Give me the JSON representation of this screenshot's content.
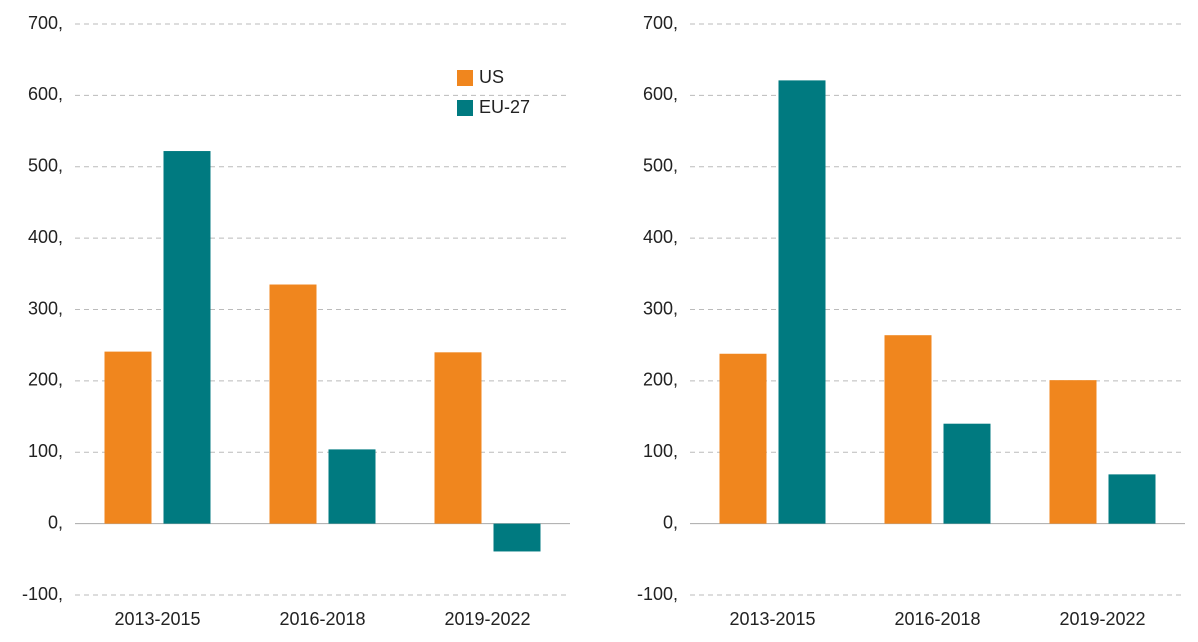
{
  "chart_data": [
    {
      "type": "bar",
      "categories": [
        "2013-2015",
        "2016-2018",
        "2019-2022"
      ],
      "series": [
        {
          "name": "US",
          "color": "#f0861e",
          "values": [
            241,
            335,
            240
          ]
        },
        {
          "name": "EU-27",
          "color": "#007a80",
          "values": [
            522,
            104,
            -39
          ]
        }
      ],
      "ylim": [
        -100,
        700
      ],
      "yticks": [
        {
          "value": -100,
          "label": "-100,"
        },
        {
          "value": 0,
          "label": "0,"
        },
        {
          "value": 100,
          "label": "100,"
        },
        {
          "value": 200,
          "label": "200,"
        },
        {
          "value": 300,
          "label": "300,"
        },
        {
          "value": 400,
          "label": "400,"
        },
        {
          "value": 500,
          "label": "500,"
        },
        {
          "value": 600,
          "label": "600,"
        },
        {
          "value": 700,
          "label": "700,"
        }
      ],
      "grid": true,
      "legend": "top-right"
    },
    {
      "type": "bar",
      "categories": [
        "2013-2015",
        "2016-2018",
        "2019-2022"
      ],
      "series": [
        {
          "color": "#f0861e",
          "values": [
            238,
            264,
            201
          ]
        },
        {
          "color": "#007a80",
          "values": [
            621,
            140,
            69
          ]
        }
      ],
      "ylim": [
        -100,
        700
      ],
      "yticks": [
        {
          "value": -100,
          "label": "-100,"
        },
        {
          "value": 0,
          "label": "0,"
        },
        {
          "value": 100,
          "label": "100,"
        },
        {
          "value": 200,
          "label": "200,"
        },
        {
          "value": 300,
          "label": "300,"
        },
        {
          "value": 400,
          "label": "400,"
        },
        {
          "value": 500,
          "label": "500,"
        },
        {
          "value": 600,
          "label": "600,"
        },
        {
          "value": 700,
          "label": "700,"
        }
      ],
      "grid": true
    }
  ]
}
